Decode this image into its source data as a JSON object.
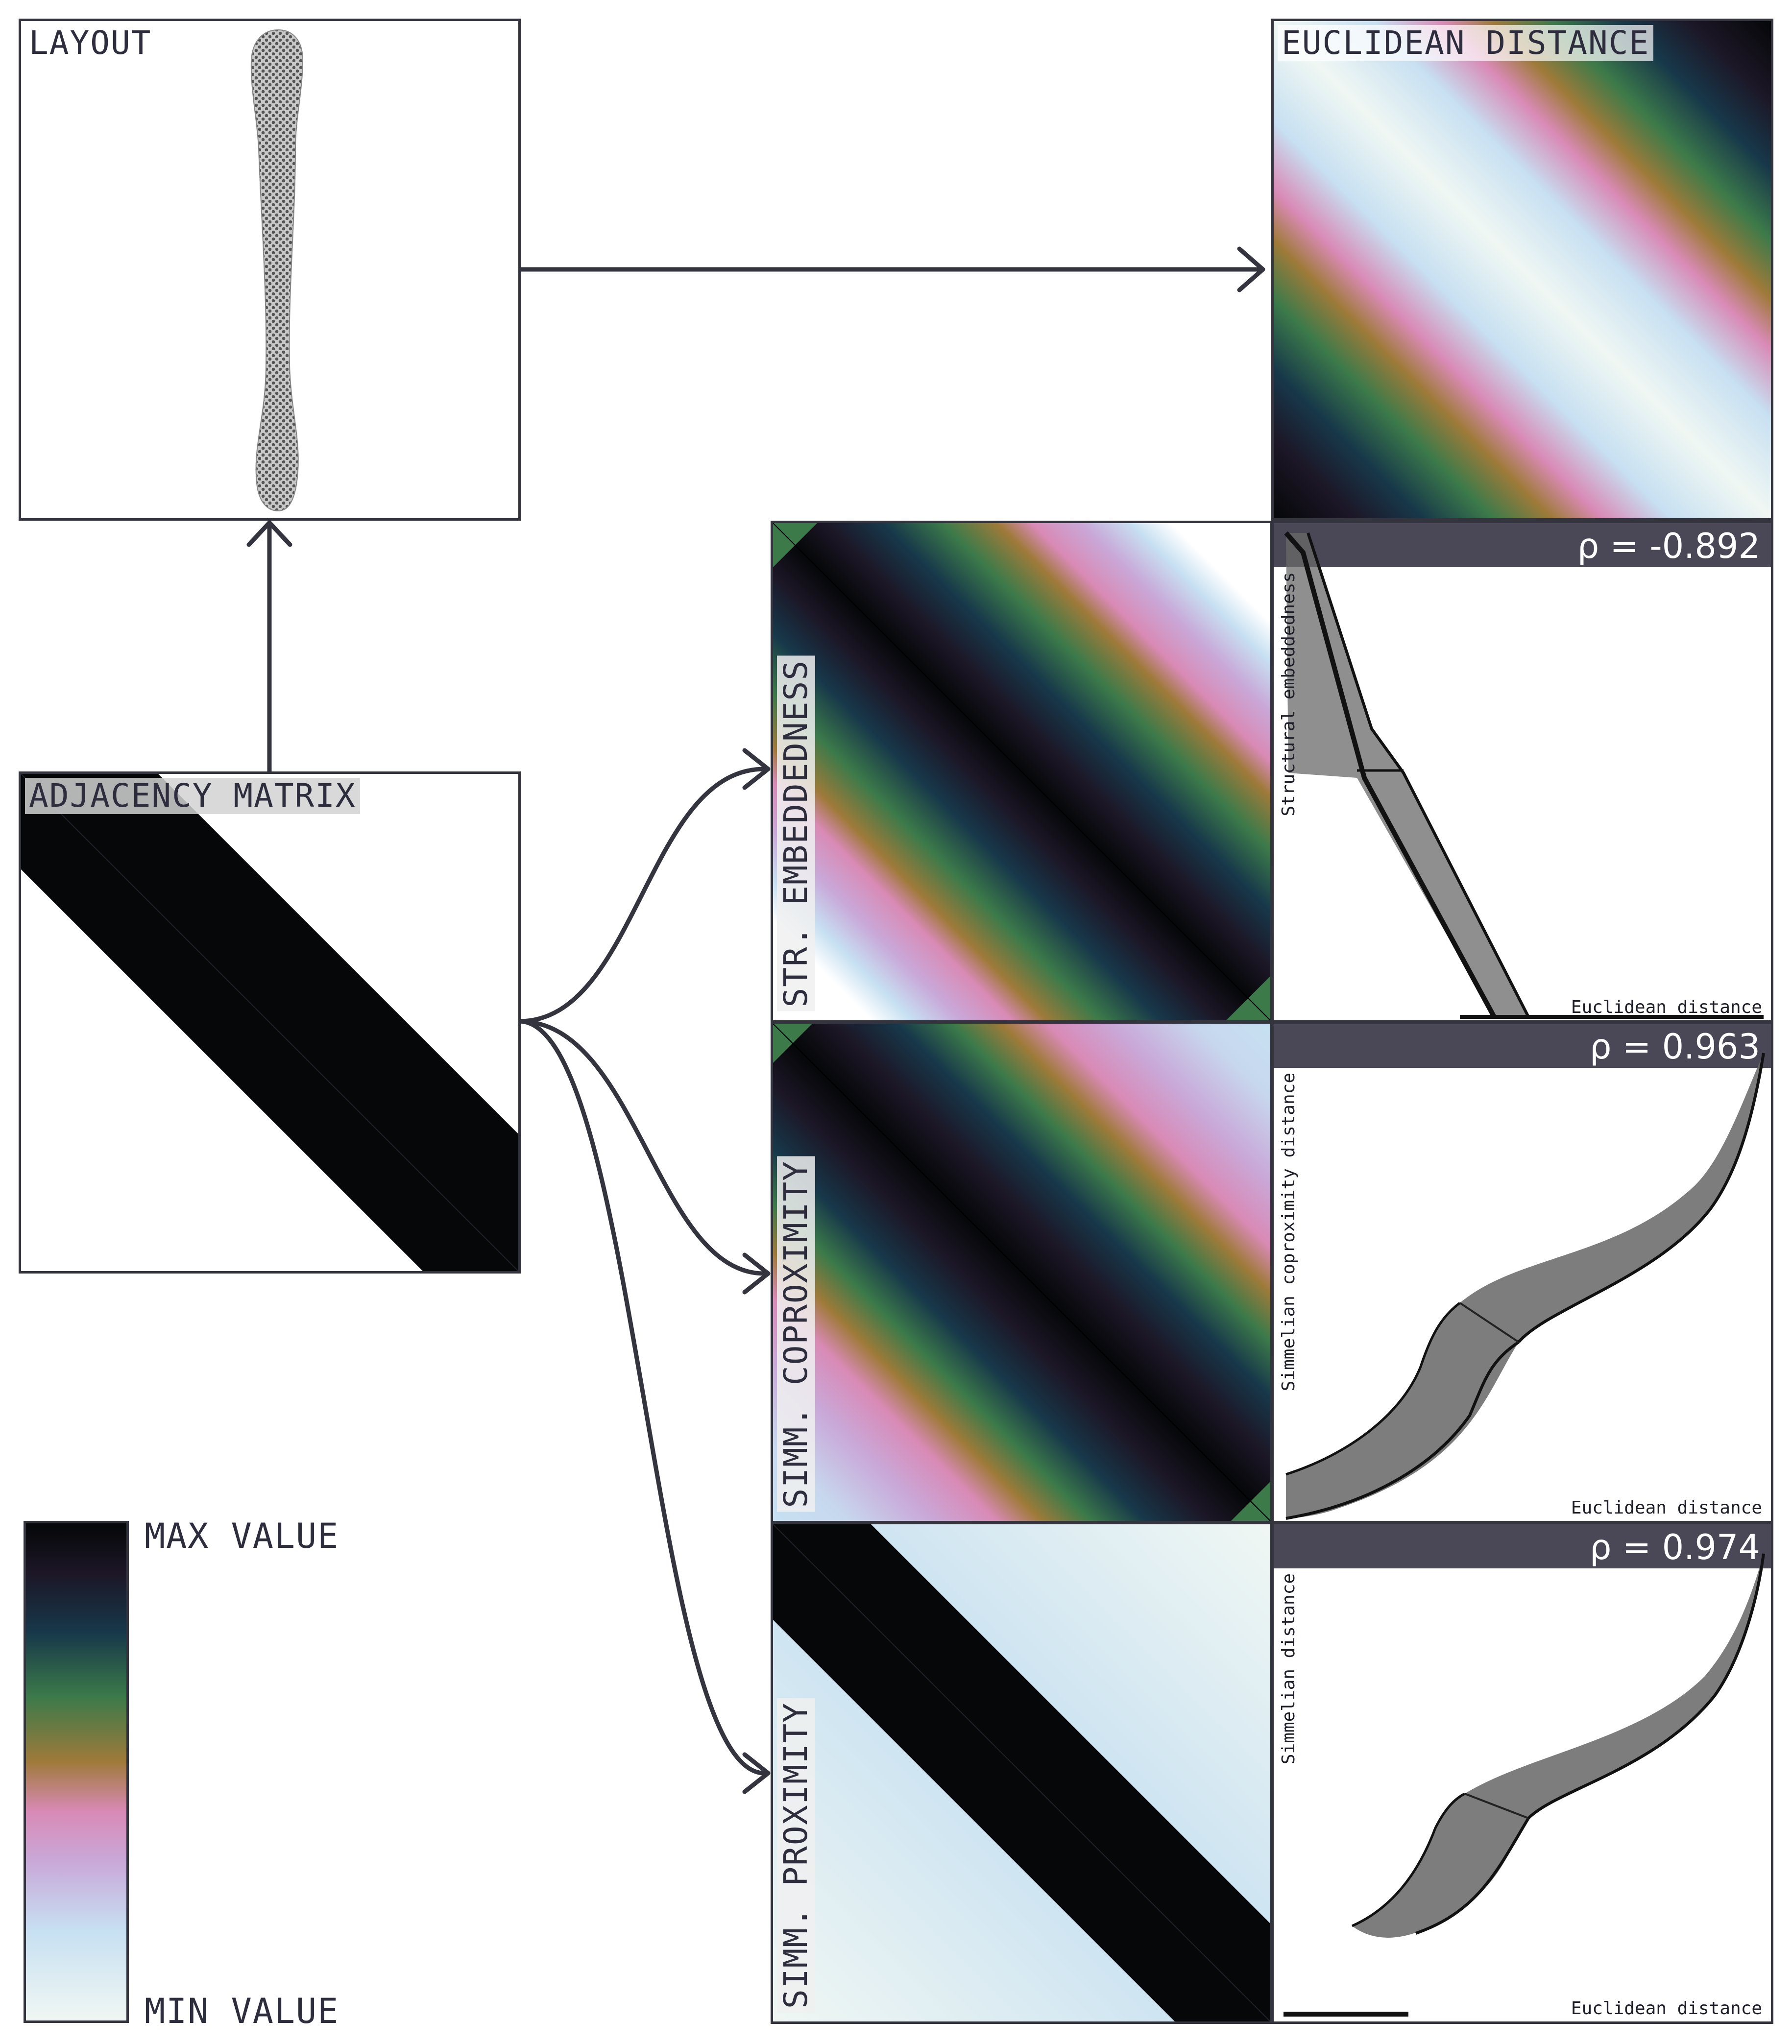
{
  "colors": {
    "frame": "#34343f",
    "arrow": "#34343f",
    "rho_bar": "#4a4856",
    "colormap": [
      "#f0f7f3",
      "#c7e0f2",
      "#c9a8d8",
      "#d98ab6",
      "#9f7a3a",
      "#3c7a4a",
      "#17384a",
      "#1c1626",
      "#050708"
    ]
  },
  "panels": {
    "layout": {
      "label": "LAYOUT"
    },
    "euclidean": {
      "label": "EUCLIDEAN DISTANCE"
    },
    "adjacency": {
      "label": "ADJACENCY MATRIX"
    },
    "embeddedness": {
      "label": "STR. EMBEDDEDNESS",
      "rho": "ρ = -0.892",
      "x_label": "Euclidean distance",
      "y_label": "Structural embeddedness"
    },
    "coproximity": {
      "label": "SIMM. COPROXIMITY",
      "rho": "ρ = 0.963",
      "x_label": "Euclidean distance",
      "y_label": "Simmelian coproximity distance"
    },
    "proximity": {
      "label": "SIMM. PROXIMITY",
      "rho": "ρ = 0.974",
      "x_label": "Euclidean distance",
      "y_label": "Simmelian distance"
    }
  },
  "legend": {
    "max_label": "MAX VALUE",
    "min_label": "MIN VALUE"
  }
}
